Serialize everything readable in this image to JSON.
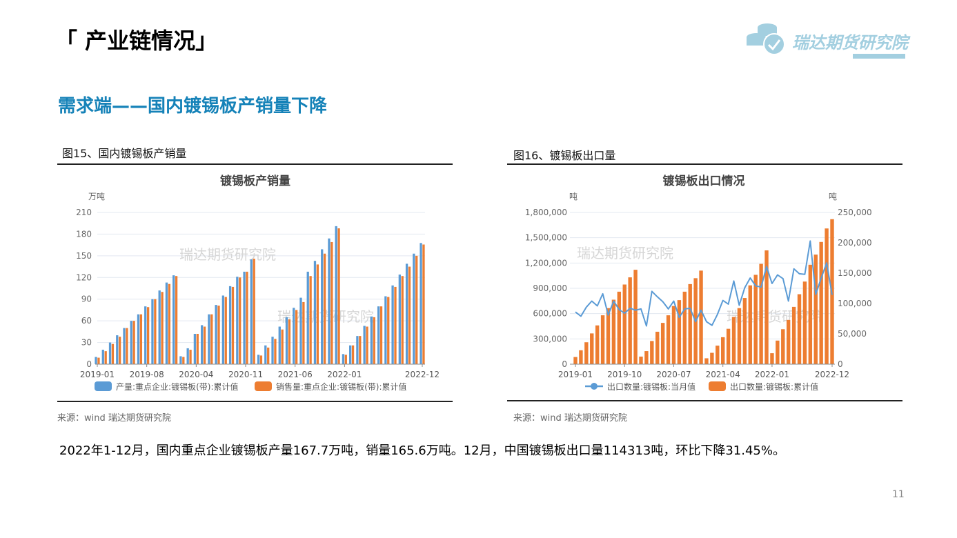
{
  "header": {
    "title": "「 产业链情况」",
    "section_title": "需求端——国内镀锡板产销量下降"
  },
  "logo": {
    "text": "瑞达期货研究院",
    "color": "#a3cfe0"
  },
  "figures": [
    {
      "caption": "图15、国内镀锡板产销量",
      "source": "来源：wind   瑞达期货研究院"
    },
    {
      "caption": "图16、镀锡板出口量",
      "source": "来源：wind   瑞达期货研究院"
    }
  ],
  "summary": "2022年1-12月，国内重点企业镀锡板产量167.7万吨，销量165.6万吨。12月，中国镀锡板出口量114313吨，环比下降31.45%。",
  "page_number": "11",
  "chart_data": [
    {
      "type": "bar",
      "title": "镀锡板产销量",
      "ylabel": "万吨",
      "watermark": "瑞达期货研究院",
      "ylim": [
        0,
        210
      ],
      "yticks": [
        "0",
        "30",
        "60",
        "90",
        "120",
        "150",
        "180",
        "210"
      ],
      "xtick_labels": [
        "2019-01",
        "2019-08",
        "2020-04",
        "2020-11",
        "2021-06",
        "2022-01",
        "2022-12"
      ],
      "grid": true,
      "legend": "bottom",
      "categories": [
        "2019-01",
        "2019-02",
        "2019-03",
        "2019-04",
        "2019-05",
        "2019-06",
        "2019-07",
        "2019-08",
        "2019-09",
        "2019-10",
        "2019-11",
        "2019-12",
        "2020-01",
        "2020-03",
        "2020-04",
        "2020-05",
        "2020-06",
        "2020-07",
        "2020-08",
        "2020-09",
        "2020-10",
        "2020-11",
        "2020-12",
        "2021-01",
        "2021-02",
        "2021-03",
        "2021-04",
        "2021-05",
        "2021-06",
        "2021-07",
        "2021-08",
        "2021-09",
        "2021-10",
        "2021-11",
        "2021-12",
        "2022-01",
        "2022-02",
        "2022-03",
        "2022-04",
        "2022-05",
        "2022-06",
        "2022-07",
        "2022-08",
        "2022-09",
        "2022-10",
        "2022-11",
        "2022-12"
      ],
      "series": [
        {
          "name": "产量:重点企业:镀锡板(带):累计值",
          "color": "#5b9bd5",
          "values": [
            10,
            20,
            30,
            40,
            50,
            60,
            69,
            80,
            90,
            102,
            113,
            123,
            11,
            22,
            42,
            54,
            69,
            82,
            95,
            108,
            121,
            128,
            145,
            13,
            26,
            38,
            52,
            65,
            78,
            92,
            128,
            143,
            159,
            174,
            191,
            14,
            26,
            39,
            53,
            66,
            80,
            94,
            109,
            124,
            139,
            153,
            167.7
          ]
        },
        {
          "name": "销售量:重点企业:镀锡板(带):累计值",
          "color": "#ed7d31",
          "values": [
            9,
            18,
            28,
            38,
            50,
            60,
            69,
            79,
            90,
            100,
            111,
            122,
            10,
            20,
            42,
            52,
            69,
            81,
            93,
            107,
            120,
            128,
            146,
            12,
            23,
            35,
            48,
            62,
            75,
            86,
            122,
            138,
            153,
            169,
            188,
            13,
            26,
            39,
            52,
            65,
            80,
            93,
            107,
            122,
            135,
            150,
            165.6
          ]
        }
      ]
    },
    {
      "type": "bar+line",
      "title": "镀锡板出口情况",
      "ylabel_left": "吨",
      "ylabel_right": "吨",
      "watermark": "瑞达期货研究院",
      "ylim_left": [
        0,
        1800000
      ],
      "ylim_right": [
        0,
        250000
      ],
      "yticks_left": [
        "0",
        "300,000",
        "600,000",
        "900,000",
        "1,200,000",
        "1,500,000",
        "1,800,000"
      ],
      "yticks_right": [
        "0",
        "50,000",
        "100,000",
        "150,000",
        "200,000",
        "250,000"
      ],
      "xtick_labels": [
        "2019-01",
        "2019-10",
        "2020-07",
        "2021-04",
        "2022-01",
        "2022-12"
      ],
      "grid": true,
      "legend": "bottom",
      "categories": [
        "2019-01",
        "2019-02",
        "2019-03",
        "2019-04",
        "2019-05",
        "2019-06",
        "2019-07",
        "2019-08",
        "2019-09",
        "2019-10",
        "2019-11",
        "2019-12",
        "2020-01",
        "2020-02",
        "2020-03",
        "2020-04",
        "2020-05",
        "2020-06",
        "2020-07",
        "2020-08",
        "2020-09",
        "2020-10",
        "2020-11",
        "2020-12",
        "2021-01",
        "2021-02",
        "2021-03",
        "2021-04",
        "2021-05",
        "2021-06",
        "2021-07",
        "2021-08",
        "2021-09",
        "2021-10",
        "2021-11",
        "2021-12",
        "2022-01",
        "2022-02",
        "2022-03",
        "2022-04",
        "2022-05",
        "2022-06",
        "2022-07",
        "2022-08",
        "2022-09",
        "2022-10",
        "2022-11",
        "2022-12"
      ],
      "series": [
        {
          "name": "出口数量:镀锡板:当月值",
          "type": "line",
          "axis": "right",
          "color": "#5b9bd5",
          "values": [
            86000,
            79000,
            94000,
            104000,
            96000,
            116000,
            81000,
            104000,
            90000,
            84000,
            92000,
            89000,
            91000,
            63000,
            120000,
            111000,
            103000,
            91000,
            104000,
            77000,
            91000,
            92000,
            70000,
            89000,
            70000,
            64000,
            82000,
            105000,
            99000,
            137000,
            97000,
            126000,
            142000,
            129000,
            127000,
            161000,
            133000,
            147000,
            141000,
            104000,
            157000,
            149000,
            148000,
            203000,
            115000,
            142000,
            166800,
            114313
          ]
        },
        {
          "name": "出口数量:镀锡板:累计值",
          "type": "bar",
          "axis": "left",
          "color": "#ed7d31",
          "values": [
            85000,
            165000,
            260000,
            365000,
            460000,
            580000,
            665000,
            765000,
            860000,
            945000,
            1030000,
            1120000,
            90000,
            155000,
            275000,
            385000,
            490000,
            580000,
            690000,
            760000,
            860000,
            950000,
            1020000,
            1110000,
            70000,
            135000,
            220000,
            320000,
            420000,
            560000,
            665000,
            785000,
            935000,
            1060000,
            1190000,
            1350000,
            130000,
            280000,
            415000,
            525000,
            680000,
            830000,
            980000,
            1180000,
            1300000,
            1450000,
            1610000,
            1720000
          ]
        }
      ]
    }
  ]
}
